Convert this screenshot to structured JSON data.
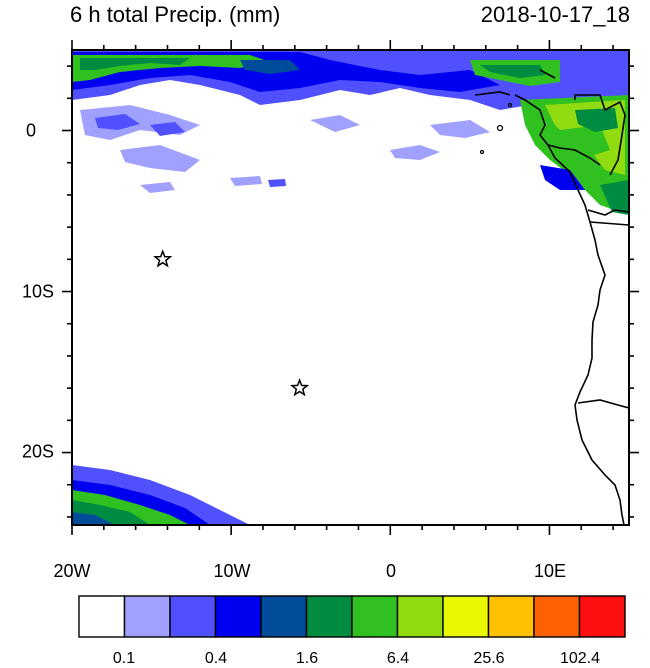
{
  "title": "6 h total Precip. (mm)",
  "valid_time": "2018-10-17_18",
  "map": {
    "lon_ticks": [
      "20W",
      "10W",
      "0",
      "10E"
    ],
    "lat_ticks": [
      "0",
      "10S",
      "20S"
    ],
    "lon_range": [
      -20,
      15
    ],
    "lat_range": [
      -24.5,
      5
    ],
    "markers": [
      {
        "name": "star-marker",
        "lon": -14.3,
        "lat": -8.0
      },
      {
        "name": "star-marker",
        "lon": -5.7,
        "lat": -16.0
      }
    ]
  },
  "colorbar": {
    "labels": [
      "0.1",
      "0.4",
      "1.6",
      "6.4",
      "25.6",
      "102.4"
    ],
    "colors": [
      "#ffffff",
      "#a0a0ff",
      "#5050ff",
      "#0000f0",
      "#004c9a",
      "#008c40",
      "#30c020",
      "#90dc10",
      "#e8f800",
      "#ffc000",
      "#ff6000",
      "#ff1010"
    ]
  }
}
